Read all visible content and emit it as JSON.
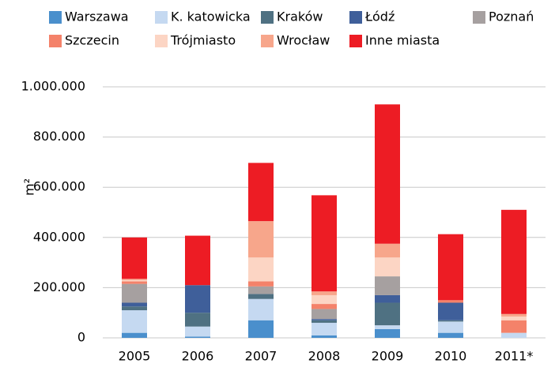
{
  "chart_data": {
    "type": "stacked_bar",
    "y_label": "m²",
    "categories": [
      "2005",
      "2006",
      "2007",
      "2008",
      "2009",
      "2010",
      "2011*"
    ],
    "series": [
      {
        "name": "Warszawa",
        "color": "#4a8fcc",
        "values": [
          20000,
          5000,
          70000,
          10000,
          35000,
          20000,
          0
        ]
      },
      {
        "name": "K. katowicka",
        "color": "#c5d9f1",
        "values": [
          90000,
          40000,
          85000,
          50000,
          15000,
          45000,
          20000
        ]
      },
      {
        "name": "Kraków",
        "color": "#4f7182",
        "values": [
          15000,
          55000,
          20000,
          10000,
          90000,
          5000,
          0
        ]
      },
      {
        "name": "Łódź",
        "color": "#3f5f9a",
        "values": [
          15000,
          110000,
          0,
          5000,
          30000,
          70000,
          0
        ]
      },
      {
        "name": "Poznań",
        "color": "#a6a0a0",
        "values": [
          75000,
          0,
          30000,
          40000,
          75000,
          0,
          0
        ]
      },
      {
        "name": "Szczecin",
        "color": "#f4826a",
        "values": [
          10000,
          0,
          20000,
          20000,
          0,
          10000,
          50000
        ]
      },
      {
        "name": "Trójmiasto",
        "color": "#fcd5c4",
        "values": [
          5000,
          0,
          95000,
          35000,
          75000,
          0,
          15000
        ]
      },
      {
        "name": "Wrocław",
        "color": "#f7a68b",
        "values": [
          5000,
          0,
          145000,
          15000,
          55000,
          0,
          10000
        ]
      },
      {
        "name": "Inne miasta",
        "color": "#ed1c24",
        "values": [
          165000,
          197000,
          232000,
          383000,
          555000,
          263000,
          415000
        ]
      }
    ],
    "ylim": [
      0,
      1000000
    ],
    "yticks": [
      0,
      {
        "value": 200000,
        "label": "200.000"
      },
      {
        "value": 400000,
        "label": "400.000"
      },
      {
        "value": 600000,
        "label": "600.000"
      },
      {
        "value": 800000,
        "label": "800.000"
      },
      {
        "value": 1000000,
        "label": "1.000.000"
      }
    ],
    "grid": true
  }
}
